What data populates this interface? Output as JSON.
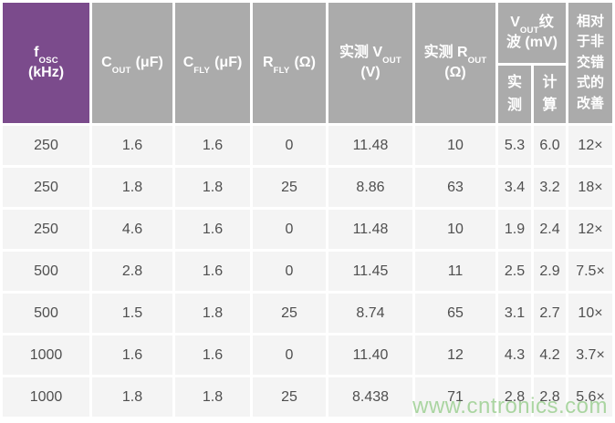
{
  "chart_data": {
    "type": "table",
    "columns": [
      "fOSC (kHz)",
      "COUT (μF)",
      "CFLY (μF)",
      "RFLY (Ω)",
      "实测 VOUT (V)",
      "实测 ROUT (Ω)",
      "VOUT纹波 (mV) 实测",
      "VOUT纹波 (mV) 计算",
      "相对于非交错式的改善"
    ],
    "rows": [
      [
        "250",
        "1.6",
        "1.6",
        "0",
        "11.48",
        "10",
        "5.3",
        "6.0",
        "12×"
      ],
      [
        "250",
        "1.8",
        "1.8",
        "25",
        "8.86",
        "63",
        "3.4",
        "3.2",
        "18×"
      ],
      [
        "250",
        "4.6",
        "1.6",
        "0",
        "11.48",
        "10",
        "1.9",
        "2.4",
        "12×"
      ],
      [
        "500",
        "2.8",
        "1.6",
        "0",
        "11.45",
        "11",
        "2.5",
        "2.9",
        "7.5×"
      ],
      [
        "500",
        "1.5",
        "1.8",
        "25",
        "8.74",
        "65",
        "3.1",
        "2.7",
        "10×"
      ],
      [
        "1000",
        "1.6",
        "1.6",
        "0",
        "11.40",
        "12",
        "4.3",
        "4.2",
        "3.7×"
      ],
      [
        "1000",
        "1.8",
        "1.8",
        "25",
        "8.438",
        "71",
        "2.8",
        "2.8",
        "5.6×"
      ]
    ]
  },
  "header": {
    "fosc": {
      "symbol": "f",
      "sub": "OSC",
      "unit": "(kHz)"
    },
    "cout": {
      "symbol": "C",
      "sub": "OUT",
      "unit": "(μF)"
    },
    "cfly": {
      "symbol": "C",
      "sub": "FLY",
      "unit": "(μF)"
    },
    "rfly": {
      "symbol": "R",
      "sub": "FLY",
      "unit": "(Ω)"
    },
    "vout": {
      "prefix": "实测 ",
      "symbol": "V",
      "sub": "OUT",
      "unit": "(V)"
    },
    "rout": {
      "prefix": "实测 ",
      "symbol": "R",
      "sub": "OUT",
      "unit": "(Ω)"
    },
    "ripple": {
      "symbol": "V",
      "sub": "OUT",
      "suffix": "纹波 (mV)",
      "measured": "实测",
      "calculated": "计算"
    },
    "improvement": "相对于非交错式的改善"
  },
  "watermark": {
    "text": "www.cntronics.com"
  },
  "colors": {
    "header_purple": "#7b4b8c",
    "header_gray": "#ababab",
    "header_text": "#ffffff",
    "cell_bg": "#f4f4f4",
    "cell_text": "#4f4f4f",
    "watermark_green": "#a3d299",
    "page_bg": "#ffffff"
  }
}
